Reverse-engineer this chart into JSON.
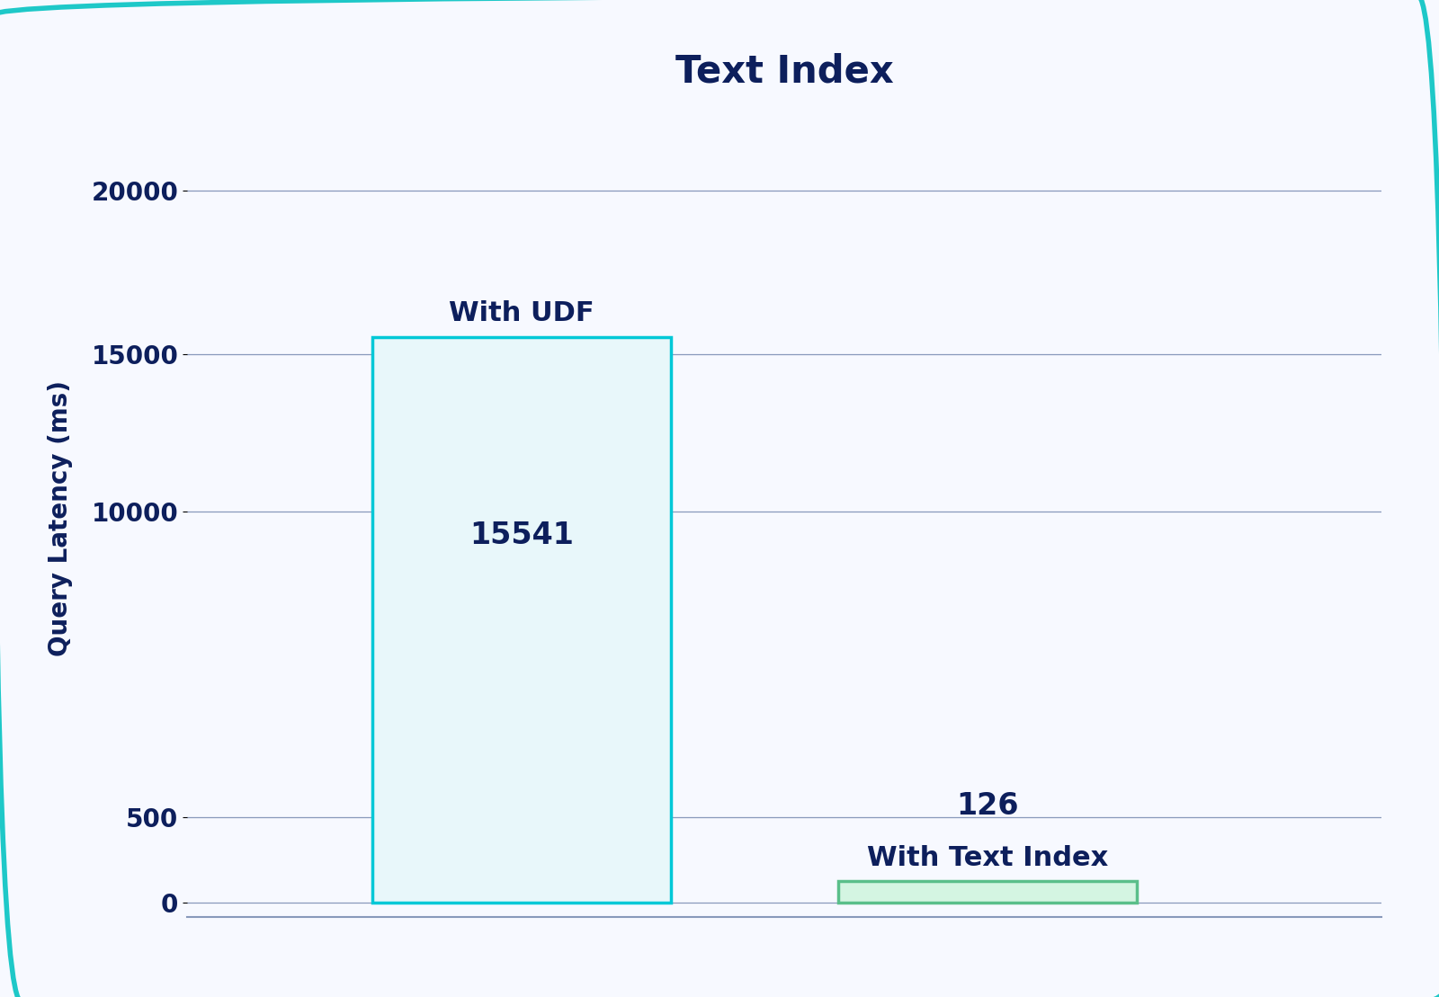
{
  "title": "Text Index",
  "ylabel": "Query Latency (ms)",
  "categories": [
    "With UDF",
    "With Text Index"
  ],
  "values": [
    15541,
    126
  ],
  "bar_colors": [
    "#e8f7fa",
    "#d4f5e2"
  ],
  "bar_edge_colors": [
    "#00c8d7",
    "#5abf8a"
  ],
  "label_color": "#0d1f5c",
  "title_color": "#0d1f5c",
  "ylabel_color": "#0d1f5c",
  "tick_color": "#0d1f5c",
  "yticks_display": [
    "0",
    "500",
    "10000",
    "15000",
    "20000"
  ],
  "yticks_positions": [
    0.0,
    0.12,
    0.55,
    0.77,
    1.0
  ],
  "grid_color": "#8899bb",
  "bg_color": "#f7f9ff",
  "border_color": "#1ec8c8",
  "title_fontsize": 30,
  "label_fontsize": 20,
  "tick_fontsize": 20,
  "annot_fontsize": 24,
  "bar_label_fontsize": 22
}
